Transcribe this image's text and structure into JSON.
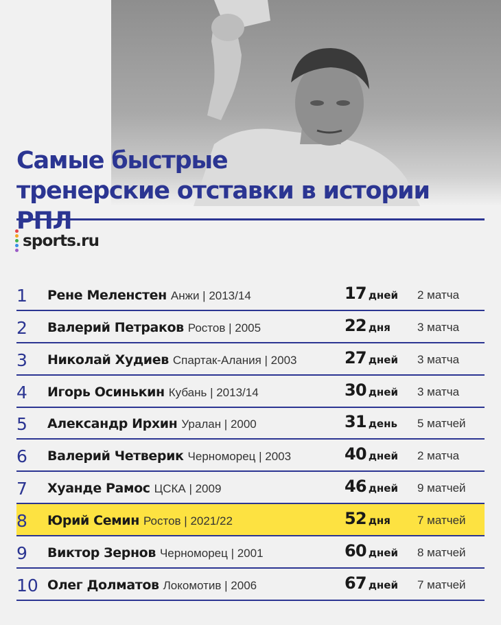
{
  "title": {
    "line1": "Самые быстрые",
    "line2": "тренерские отставки в истории РПЛ"
  },
  "brand": {
    "name": "sports.ru",
    "dot_colors": [
      "#e5454a",
      "#f5a623",
      "#3fb34f",
      "#3a8ee6",
      "#9b5cc6"
    ]
  },
  "colors": {
    "accent": "#2b3592",
    "highlight": "#fde241"
  },
  "rows": [
    {
      "rank": "1",
      "name": "Рене Меленстен",
      "club": "Анжи | 2013/14",
      "num": "17",
      "unit": "дней",
      "matches": "2 матча",
      "highlight": false
    },
    {
      "rank": "2",
      "name": "Валерий Петраков",
      "club": "Ростов | 2005",
      "num": "22",
      "unit": "дня",
      "matches": "3 матча",
      "highlight": false
    },
    {
      "rank": "3",
      "name": "Николай Худиев",
      "club": "Спартак-Алания | 2003",
      "num": "27",
      "unit": "дней",
      "matches": "3 матча",
      "highlight": false
    },
    {
      "rank": "4",
      "name": "Игорь Осинькин",
      "club": "Кубань | 2013/14",
      "num": "30",
      "unit": "дней",
      "matches": "3 матча",
      "highlight": false
    },
    {
      "rank": "5",
      "name": "Александр Ирхин",
      "club": "Уралан | 2000",
      "num": "31",
      "unit": "день",
      "matches": "5 матчей",
      "highlight": false
    },
    {
      "rank": "6",
      "name": "Валерий Четверик",
      "club": "Черноморец | 2003",
      "num": "40",
      "unit": "дней",
      "matches": "2 матча",
      "highlight": false
    },
    {
      "rank": "7",
      "name": "Хуанде Рамос",
      "club": "ЦСКА | 2009",
      "num": "46",
      "unit": "дней",
      "matches": "9 матчей",
      "highlight": false
    },
    {
      "rank": "8",
      "name": "Юрий Семин",
      "club": "Ростов | 2021/22",
      "num": "52",
      "unit": "дня",
      "matches": "7 матчей",
      "highlight": true
    },
    {
      "rank": "9",
      "name": "Виктор Зернов",
      "club": "Черноморец | 2001",
      "num": "60",
      "unit": "дней",
      "matches": "8 матчей",
      "highlight": false
    },
    {
      "rank": "10",
      "name": "Олег Долматов",
      "club": "Локомотив | 2006",
      "num": "67",
      "unit": "дней",
      "matches": "7 матчей",
      "highlight": false
    }
  ]
}
